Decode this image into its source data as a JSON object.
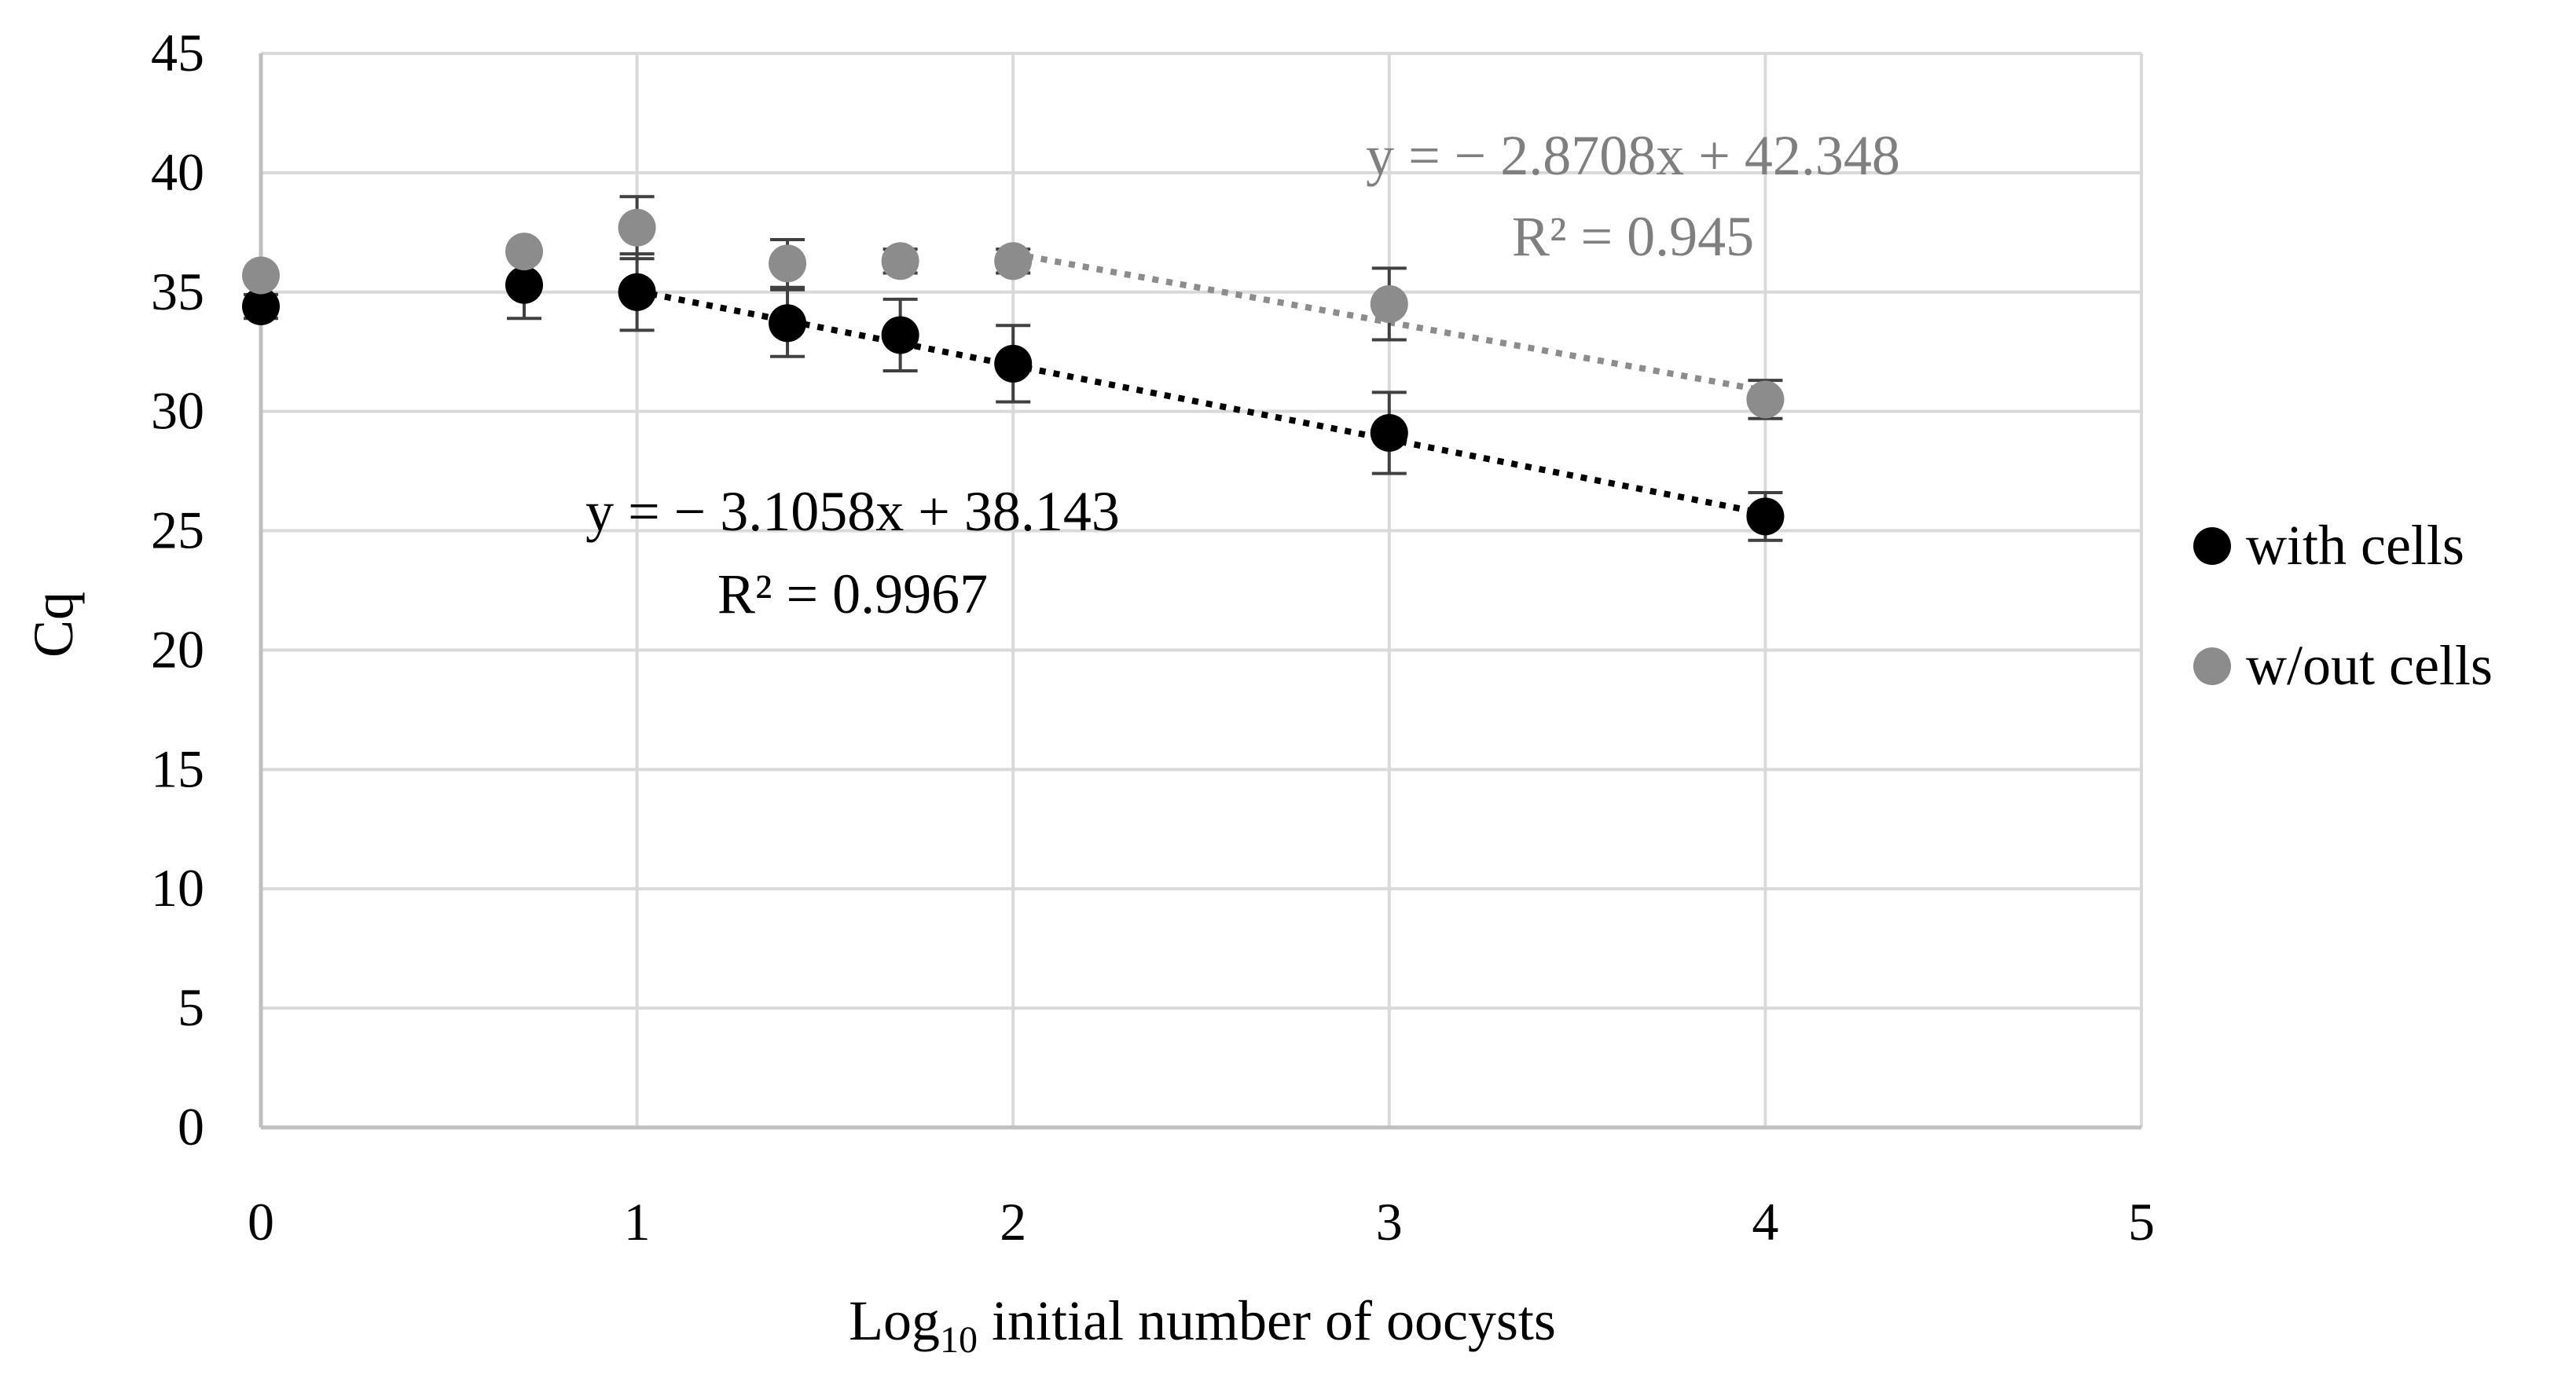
{
  "chart_data": {
    "type": "scatter",
    "title": "",
    "xlabel": {
      "main": "Log",
      "subscript": "10",
      "rest": " initial number of oocysts"
    },
    "ylabel": "Cq",
    "xlim": [
      0,
      5
    ],
    "ylim": [
      0,
      45
    ],
    "x_ticks": [
      "0",
      "1",
      "2",
      "3",
      "4",
      "5"
    ],
    "y_ticks": [
      "0",
      "5",
      "10",
      "15",
      "20",
      "25",
      "30",
      "35",
      "40",
      "45"
    ],
    "grid": true,
    "legend_position": "right",
    "series": [
      {
        "name": "with cells",
        "color": "#000000",
        "points": [
          {
            "x": 0.0,
            "y": 34.4,
            "err": 0.5
          },
          {
            "x": 0.7,
            "y": 35.3,
            "err": 1.4
          },
          {
            "x": 1.0,
            "y": 35.0,
            "err": 1.6
          },
          {
            "x": 1.4,
            "y": 33.7,
            "err": 1.4
          },
          {
            "x": 1.7,
            "y": 33.2,
            "err": 1.5
          },
          {
            "x": 2.0,
            "y": 32.0,
            "err": 1.6
          },
          {
            "x": 3.0,
            "y": 29.1,
            "err": 1.7
          },
          {
            "x": 4.0,
            "y": 25.6,
            "err": 1.0
          }
        ],
        "trendline": {
          "slope": -3.1058,
          "intercept": 38.143,
          "x_range": [
            1.0,
            4.0
          ],
          "style": "dotted"
        },
        "equation": "y = − 3.1058x + 38.143",
        "r2": "R² = 0.9967"
      },
      {
        "name": "w/out cells",
        "color": "#8c8c8c",
        "points": [
          {
            "x": 0.0,
            "y": 35.7,
            "err": 0.0
          },
          {
            "x": 0.7,
            "y": 36.7,
            "err": 0.0
          },
          {
            "x": 1.0,
            "y": 37.7,
            "err": 1.3
          },
          {
            "x": 1.4,
            "y": 36.2,
            "err": 1.0
          },
          {
            "x": 1.7,
            "y": 36.3,
            "err": 0.5
          },
          {
            "x": 2.0,
            "y": 36.3,
            "err": 0.5
          },
          {
            "x": 3.0,
            "y": 34.5,
            "err": 1.5
          },
          {
            "x": 4.0,
            "y": 30.5,
            "err": 0.8
          }
        ],
        "trendline": {
          "slope": -2.8708,
          "intercept": 42.348,
          "x_range": [
            2.0,
            4.0
          ],
          "style": "dotted"
        },
        "equation": "y = − 2.8708x + 42.348",
        "r2": "R² = 0.945"
      }
    ]
  }
}
